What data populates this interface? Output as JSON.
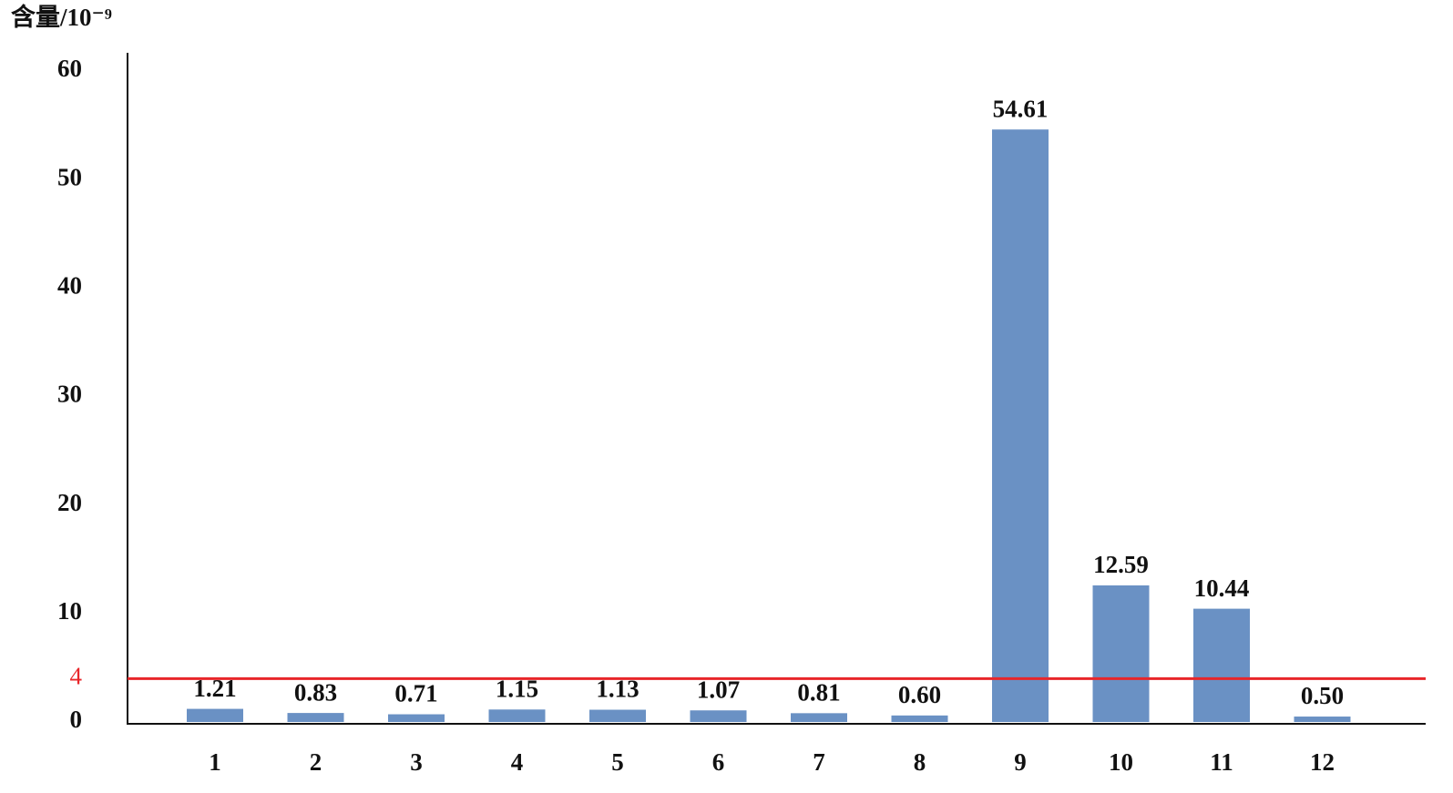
{
  "chart_data": {
    "type": "bar",
    "ylabel": "含量/10⁻⁹",
    "categories": [
      "1",
      "2",
      "3",
      "4",
      "5",
      "6",
      "7",
      "8",
      "9",
      "10",
      "11",
      "12"
    ],
    "values": [
      1.21,
      0.83,
      0.71,
      1.15,
      1.13,
      1.07,
      0.81,
      0.6,
      54.61,
      12.59,
      10.44,
      0.5
    ],
    "value_labels": [
      "1.21",
      "0.83",
      "0.71",
      "1.15",
      "1.13",
      "1.07",
      "0.81",
      "0.60",
      "54.61",
      "12.59",
      "10.44",
      "0.50"
    ],
    "color": "#6a91c4",
    "ylim": [
      0,
      60
    ],
    "yticks": [
      0,
      10,
      20,
      30,
      40,
      50,
      60
    ],
    "threshold": {
      "value": 4,
      "color": "#e8262a"
    },
    "grid": false
  }
}
